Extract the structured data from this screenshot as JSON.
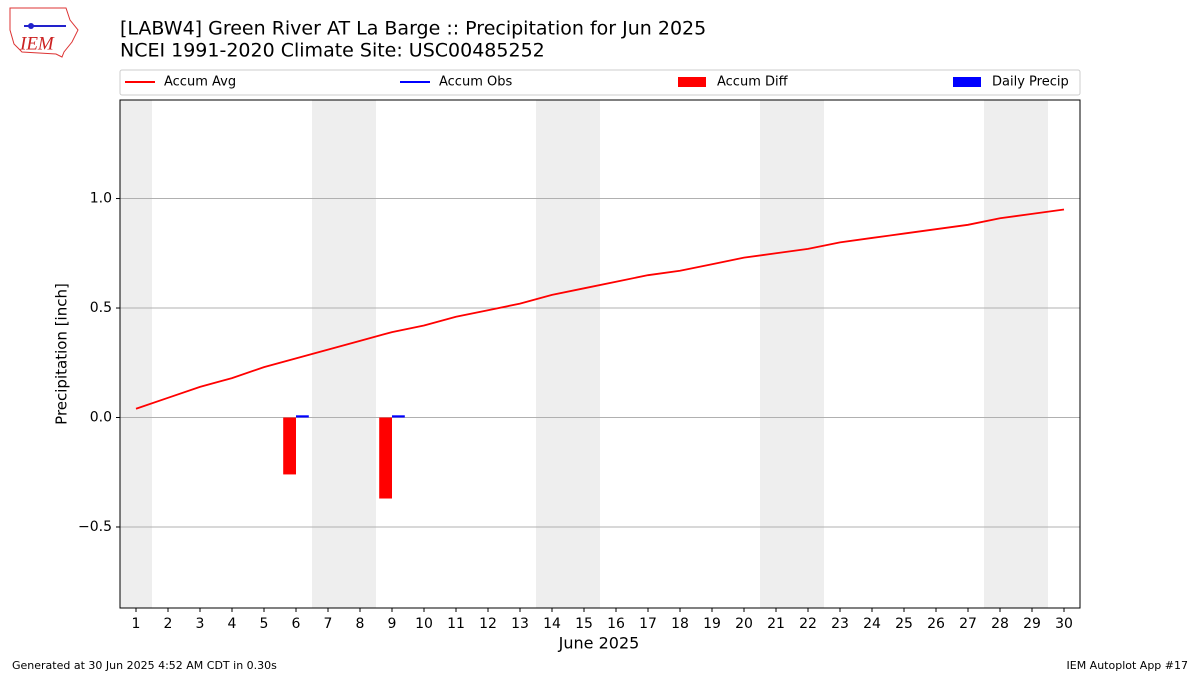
{
  "chart_data": {
    "type": "bar_line",
    "title": "[LABW4] Green River  AT La Barge :: Precipitation for Jun 2025",
    "subtitle": "NCEI 1991-2020 Climate Site: USC00485252",
    "logo_text": "IEM",
    "xlabel": "June 2025",
    "ylabel": "Precipitation [inch]",
    "footer_left": "Generated at 30 Jun 2025 4:52 AM CDT in 0.30s",
    "footer_right": "IEM Autoplot App #17",
    "x": [
      1,
      2,
      3,
      4,
      5,
      6,
      7,
      8,
      9,
      10,
      11,
      12,
      13,
      14,
      15,
      16,
      17,
      18,
      19,
      20,
      21,
      22,
      23,
      24,
      25,
      26,
      27,
      28,
      29,
      30
    ],
    "xlim": [
      0.5,
      30.5
    ],
    "xticks": [
      1,
      2,
      3,
      4,
      5,
      6,
      7,
      8,
      9,
      10,
      11,
      12,
      13,
      14,
      15,
      16,
      17,
      18,
      19,
      20,
      21,
      22,
      23,
      24,
      25,
      26,
      27,
      28,
      29,
      30
    ],
    "ylim": [
      -0.87,
      1.45
    ],
    "yticks": [
      {
        "value": -0.5,
        "label": "−0.5"
      },
      {
        "value": 0,
        "label": "0.0"
      },
      0.5,
      {
        "value": 1,
        "label": "1.0"
      }
    ],
    "grid": true,
    "shaded_days": [
      1,
      7,
      8,
      14,
      15,
      21,
      22,
      28,
      29
    ],
    "series": [
      {
        "name": "Accum Avg",
        "kind": "line",
        "color": "#ff0000",
        "values": [
          0.04,
          0.09,
          0.14,
          0.18,
          0.23,
          0.27,
          0.31,
          0.35,
          0.39,
          0.42,
          0.46,
          0.49,
          0.52,
          0.56,
          0.59,
          0.62,
          0.65,
          0.67,
          0.7,
          0.73,
          0.75,
          0.77,
          0.8,
          0.82,
          0.84,
          0.86,
          0.88,
          0.91,
          0.93,
          0.95
        ]
      },
      {
        "name": "Accum Obs",
        "kind": "line",
        "color": "#0000ff",
        "values": [
          null,
          null,
          null,
          null,
          null,
          null,
          null,
          null,
          null,
          null,
          null,
          null,
          null,
          null,
          null,
          null,
          null,
          null,
          null,
          null,
          null,
          null,
          null,
          null,
          null,
          null,
          null,
          null,
          null,
          null
        ]
      },
      {
        "name": "Accum Diff",
        "kind": "bar",
        "color": "#ff0000",
        "values": [
          null,
          null,
          null,
          null,
          null,
          -0.26,
          null,
          null,
          -0.37,
          null,
          null,
          null,
          null,
          null,
          null,
          null,
          null,
          null,
          null,
          null,
          null,
          null,
          null,
          null,
          null,
          null,
          null,
          null,
          null,
          null
        ]
      },
      {
        "name": "Daily Precip",
        "kind": "bar",
        "color": "#0000ff",
        "values": [
          null,
          null,
          null,
          null,
          null,
          0.01,
          null,
          null,
          0.01,
          null,
          null,
          null,
          null,
          null,
          null,
          null,
          null,
          null,
          null,
          null,
          null,
          null,
          null,
          null,
          null,
          null,
          null,
          null,
          null,
          null
        ]
      }
    ]
  }
}
